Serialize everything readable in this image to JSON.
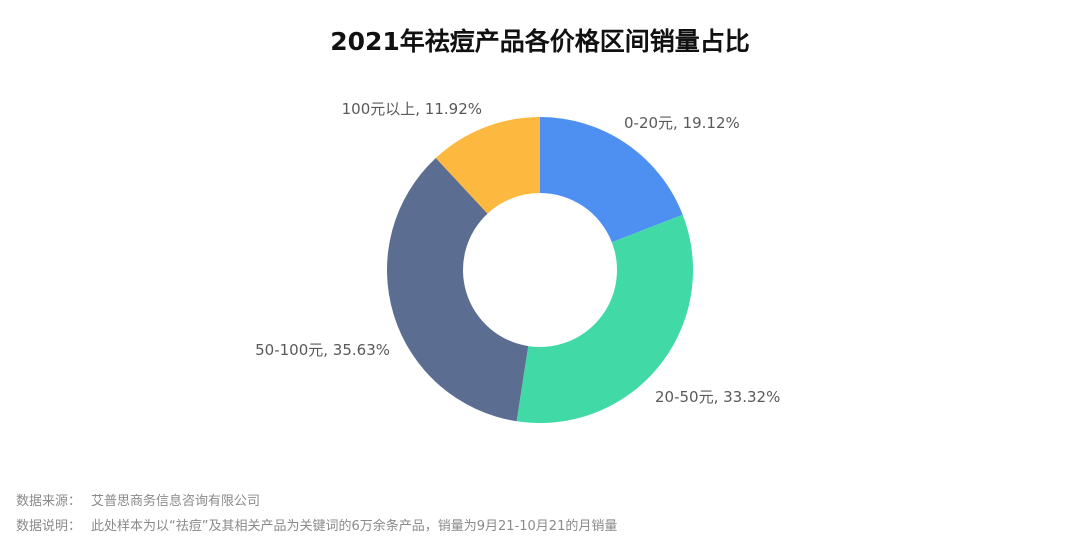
{
  "chart_data": {
    "type": "pie",
    "title": "2021年祛痘产品各价格区间销量占比",
    "donut": true,
    "labels": [
      "0-20元",
      "20-50元",
      "50-100元",
      "100元以上"
    ],
    "values": [
      19.12,
      33.32,
      35.63,
      11.92
    ],
    "colors": [
      "#4e90f2",
      "#41d9a6",
      "#5b6e91",
      "#fdb93f"
    ],
    "data_labels": [
      "0-20元, 19.12%",
      "20-50元, 33.32%",
      "50-100元, 35.63%",
      "100元以上, 11.92%"
    ]
  },
  "footer": {
    "source_label": "数据来源：",
    "source_value": "艾普思商务信息咨询有限公司",
    "note_label": "数据说明：",
    "note_value": "此处样本为以“祛痘”及其相关产品为关键词的6万余条产品，销量为9月21-10月21的月销量"
  }
}
